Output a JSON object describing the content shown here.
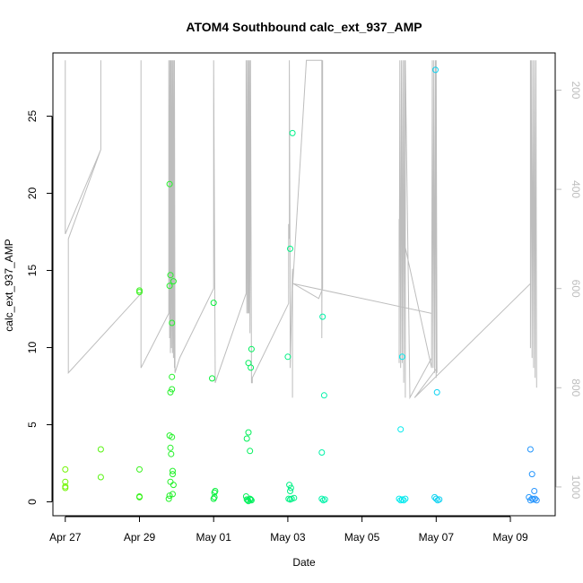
{
  "chart_data": {
    "type": "scatter",
    "title": "ATOM4 Southbound calc_ext_937_AMP",
    "xlabel": "Date",
    "ylabel": "calc_ext_937_AMP",
    "x_ticks": [
      "Apr 27",
      "Apr 29",
      "May 01",
      "May 03",
      "May 05",
      "May 07",
      "May 09"
    ],
    "y_ticks": [
      "0",
      "5",
      "10",
      "15",
      "20",
      "25"
    ],
    "right_ticks": [
      "200",
      "400",
      "600",
      "800",
      "1000"
    ],
    "xlim": [
      "2021-04-26T16:00",
      "2021-05-10T05:00"
    ],
    "ylim": [
      -0.9,
      29.1
    ],
    "right_ylim": [
      1058,
      125
    ],
    "right_axis_reversed": true,
    "grid": false,
    "line_color": "#bdbdbd",
    "point_series": {
      "name": "",
      "marker": "open-circle",
      "color_gradient": [
        "#7bf500",
        "#00f03c",
        "#00f2ec",
        "#2a86ff"
      ],
      "points": [
        [
          "2021-04-27T00:00",
          2.1
        ],
        [
          "2021-04-27T00:00",
          1.3
        ],
        [
          "2021-04-27T00:00",
          1.0
        ],
        [
          "2021-04-27T00:00",
          0.9
        ],
        [
          "2021-04-27T23:00",
          3.4
        ],
        [
          "2021-04-27T23:00",
          1.6
        ],
        [
          "2021-04-29T00:00",
          13.7
        ],
        [
          "2021-04-29T00:00",
          13.6
        ],
        [
          "2021-04-29T00:00",
          2.1
        ],
        [
          "2021-04-29T00:00",
          0.35
        ],
        [
          "2021-04-29T00:00",
          0.3
        ],
        [
          "2021-04-29T19:30",
          20.6
        ],
        [
          "2021-04-29T20:00",
          14.7
        ],
        [
          "2021-04-29T19:30",
          14.0
        ],
        [
          "2021-04-29T22:00",
          14.3
        ],
        [
          "2021-04-29T21:00",
          11.6
        ],
        [
          "2021-04-29T21:00",
          8.1
        ],
        [
          "2021-04-29T21:00",
          7.3
        ],
        [
          "2021-04-29T20:00",
          7.1
        ],
        [
          "2021-04-29T19:30",
          4.3
        ],
        [
          "2021-04-29T21:00",
          4.2
        ],
        [
          "2021-04-29T20:00",
          3.5
        ],
        [
          "2021-04-29T20:30",
          3.1
        ],
        [
          "2021-04-29T21:30",
          2.0
        ],
        [
          "2021-04-29T21:30",
          1.8
        ],
        [
          "2021-04-29T20:00",
          1.3
        ],
        [
          "2021-04-29T22:00",
          1.1
        ],
        [
          "2021-04-29T19:30",
          0.4
        ],
        [
          "2021-04-29T21:30",
          0.5
        ],
        [
          "2021-04-29T19:00",
          0.2
        ],
        [
          "2021-04-30T23:00",
          8.0
        ],
        [
          "2021-05-01T00:00",
          12.9
        ],
        [
          "2021-05-01T01:00",
          0.7
        ],
        [
          "2021-05-01T00:30",
          0.6
        ],
        [
          "2021-05-01T00:00",
          0.2
        ],
        [
          "2021-05-01T00:30",
          0.3
        ],
        [
          "2021-05-01T21:30",
          4.1
        ],
        [
          "2021-05-01T22:30",
          4.5
        ],
        [
          "2021-05-01T22:30",
          9.0
        ],
        [
          "2021-05-02T00:30",
          9.9
        ],
        [
          "2021-05-02T00:00",
          8.7
        ],
        [
          "2021-05-01T23:30",
          3.3
        ],
        [
          "2021-05-01T21:00",
          0.35
        ],
        [
          "2021-05-01T21:30",
          0.15
        ],
        [
          "2021-05-01T22:00",
          0.1
        ],
        [
          "2021-05-01T22:30",
          0.05
        ],
        [
          "2021-05-01T23:30",
          0.2
        ],
        [
          "2021-05-02T00:00",
          0.15
        ],
        [
          "2021-05-02T00:30",
          0.1
        ],
        [
          "2021-05-03T00:00",
          9.4
        ],
        [
          "2021-05-03T03:00",
          23.9
        ],
        [
          "2021-05-03T01:30",
          16.4
        ],
        [
          "2021-05-03T01:00",
          1.1
        ],
        [
          "2021-05-03T02:00",
          0.9
        ],
        [
          "2021-05-03T01:30",
          0.7
        ],
        [
          "2021-05-03T00:30",
          0.2
        ],
        [
          "2021-05-03T01:30",
          0.15
        ],
        [
          "2021-05-03T02:30",
          0.2
        ],
        [
          "2021-05-03T04:00",
          0.25
        ],
        [
          "2021-05-03T22:30",
          12.0
        ],
        [
          "2021-05-03T23:30",
          6.9
        ],
        [
          "2021-05-03T22:00",
          3.2
        ],
        [
          "2021-05-03T22:00",
          0.2
        ],
        [
          "2021-05-03T23:00",
          0.1
        ],
        [
          "2021-05-04T00:00",
          0.15
        ],
        [
          "2021-05-06T01:00",
          4.7
        ],
        [
          "2021-05-06T02:00",
          9.4
        ],
        [
          "2021-05-06T00:00",
          0.2
        ],
        [
          "2021-05-06T01:00",
          0.1
        ],
        [
          "2021-05-06T02:00",
          0.15
        ],
        [
          "2021-05-06T03:00",
          0.1
        ],
        [
          "2021-05-06T04:00",
          0.2
        ],
        [
          "2021-05-06T23:30",
          28.0
        ],
        [
          "2021-05-07T00:30",
          7.1
        ],
        [
          "2021-05-06T23:00",
          0.3
        ],
        [
          "2021-05-07T00:00",
          0.2
        ],
        [
          "2021-05-07T01:00",
          0.1
        ],
        [
          "2021-05-07T02:00",
          0.15
        ],
        [
          "2021-05-09T13:00",
          3.4
        ],
        [
          "2021-05-09T14:00",
          1.8
        ],
        [
          "2021-05-09T15:30",
          0.7
        ],
        [
          "2021-05-09T12:00",
          0.3
        ],
        [
          "2021-05-09T13:00",
          0.1
        ],
        [
          "2021-05-09T14:00",
          0.2
        ],
        [
          "2021-05-09T15:00",
          0.15
        ],
        [
          "2021-05-09T16:00",
          0.2
        ],
        [
          "2021-05-09T17:00",
          0.1
        ]
      ]
    },
    "line_series": {
      "name": "",
      "axis": "right",
      "points": [
        [
          "2021-04-27T00:00",
          490
        ],
        [
          "2021-04-27T00:00",
          140
        ],
        [
          "2021-04-27T00:00",
          490
        ],
        [
          "2021-04-27T23:00",
          320
        ],
        [
          "2021-04-27T23:00",
          140
        ],
        [
          "2021-04-27T23:00",
          320
        ],
        [
          "2021-04-27T02:00",
          500
        ],
        [
          "2021-04-27T02:00",
          770
        ],
        [
          "2021-04-29T01:00",
          610
        ],
        [
          "2021-04-29T01:00",
          140
        ],
        [
          "2021-04-29T01:00",
          760
        ],
        [
          "2021-04-29T19:00",
          650
        ],
        [
          "2021-04-29T19:00",
          140
        ],
        [
          "2021-04-29T19:30",
          700
        ],
        [
          "2021-04-29T19:40",
          140
        ],
        [
          "2021-04-29T20:00",
          730
        ],
        [
          "2021-04-29T20:20",
          140
        ],
        [
          "2021-04-29T20:40",
          720
        ],
        [
          "2021-04-29T21:00",
          140
        ],
        [
          "2021-04-29T21:20",
          730
        ],
        [
          "2021-04-29T21:40",
          140
        ],
        [
          "2021-04-29T22:00",
          740
        ],
        [
          "2021-04-29T22:20",
          140
        ],
        [
          "2021-04-29T22:40",
          760
        ],
        [
          "2021-04-29T22:40",
          140
        ],
        [
          "2021-04-29T23:00",
          770
        ],
        [
          "2021-04-30T02:00",
          740
        ],
        [
          "2021-05-01T00:00",
          600
        ],
        [
          "2021-05-01T00:00",
          140
        ],
        [
          "2021-05-01T01:00",
          760
        ],
        [
          "2021-05-01T01:00",
          790
        ],
        [
          "2021-05-01T21:00",
          610
        ],
        [
          "2021-05-01T21:00",
          140
        ],
        [
          "2021-05-01T21:30",
          650
        ],
        [
          "2021-05-01T21:50",
          140
        ],
        [
          "2021-05-01T22:10",
          650
        ],
        [
          "2021-05-01T22:30",
          140
        ],
        [
          "2021-05-01T22:50",
          650
        ],
        [
          "2021-05-01T23:10",
          140
        ],
        [
          "2021-05-01T23:30",
          690
        ],
        [
          "2021-05-01T23:50",
          140
        ],
        [
          "2021-05-02T00:30",
          790
        ],
        [
          "2021-05-02T01:00",
          790
        ],
        [
          "2021-05-02T01:00",
          780
        ],
        [
          "2021-05-03T00:30",
          630
        ],
        [
          "2021-05-03T00:30",
          470
        ],
        [
          "2021-05-03T01:00",
          500
        ],
        [
          "2021-05-03T01:00",
          140
        ],
        [
          "2021-05-03T01:30",
          620
        ],
        [
          "2021-05-03T01:30",
          760
        ],
        [
          "2021-05-03T03:00",
          560
        ],
        [
          "2021-05-03T03:00",
          820
        ],
        [
          "2021-05-03T03:00",
          600
        ],
        [
          "2021-05-03T12:00",
          140
        ],
        [
          "2021-05-03T22:00",
          140
        ],
        [
          "2021-05-03T22:00",
          700
        ],
        [
          "2021-05-03T22:30",
          140
        ],
        [
          "2021-05-03T22:30",
          600
        ],
        [
          "2021-05-03T20:00",
          620
        ],
        [
          "2021-05-03T03:30",
          590
        ],
        [
          "2021-05-06T21:00",
          650
        ],
        [
          "2021-05-06T21:00",
          760
        ],
        [
          "2021-05-06T00:00",
          460
        ],
        [
          "2021-05-06T00:00",
          750
        ],
        [
          "2021-05-06T00:30",
          140
        ],
        [
          "2021-05-06T01:00",
          760
        ],
        [
          "2021-05-06T01:30",
          140
        ],
        [
          "2021-05-06T02:00",
          750
        ],
        [
          "2021-05-06T02:30",
          140
        ],
        [
          "2021-05-06T03:00",
          790
        ],
        [
          "2021-05-06T03:30",
          140
        ],
        [
          "2021-05-06T04:00",
          820
        ],
        [
          "2021-05-06T04:00",
          140
        ],
        [
          "2021-05-06T07:00",
          820
        ],
        [
          "2021-05-06T21:00",
          740
        ],
        [
          "2021-05-06T21:30",
          140
        ],
        [
          "2021-05-06T22:00",
          760
        ],
        [
          "2021-05-06T22:30",
          140
        ],
        [
          "2021-05-06T23:00",
          770
        ],
        [
          "2021-05-06T23:30",
          140
        ],
        [
          "2021-05-07T00:00",
          780
        ],
        [
          "2021-05-07T00:00",
          140
        ],
        [
          "2021-05-07T00:30",
          770
        ],
        [
          "2021-05-07T00:30",
          760
        ],
        [
          "2021-05-06T10:00",
          820
        ],
        [
          "2021-05-09T13:00",
          590
        ],
        [
          "2021-05-09T13:00",
          140
        ],
        [
          "2021-05-09T13:00",
          720
        ],
        [
          "2021-05-09T13:30",
          140
        ],
        [
          "2021-05-09T14:00",
          740
        ],
        [
          "2021-05-09T14:30",
          140
        ],
        [
          "2021-05-09T15:00",
          760
        ],
        [
          "2021-05-09T15:30",
          140
        ],
        [
          "2021-05-09T16:00",
          780
        ],
        [
          "2021-05-09T16:30",
          140
        ],
        [
          "2021-05-09T17:00",
          800
        ]
      ]
    }
  }
}
